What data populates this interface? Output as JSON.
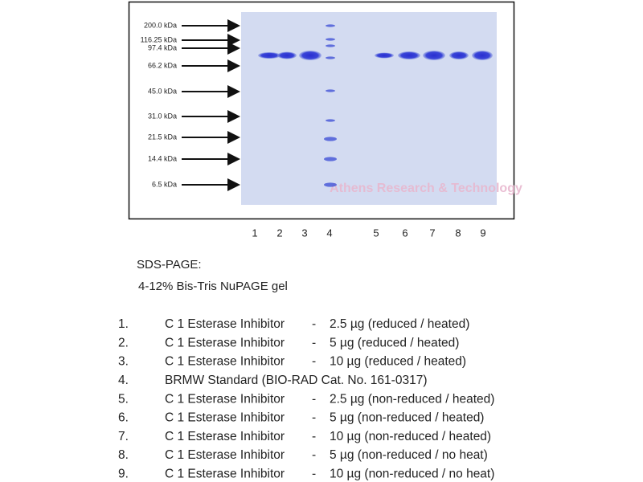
{
  "gel": {
    "markers": [
      "200.0 kDa",
      "116.25 kDa",
      "97.4 kDa",
      "66.2 kDa",
      "45.0 kDa",
      "31.0 kDa",
      "21.5 kDa",
      "14.4 kDa",
      "6.5 kDa"
    ],
    "lane_numbers": [
      "1",
      "2",
      "3",
      "4",
      "5",
      "6",
      "7",
      "8",
      "9"
    ],
    "watermark": "Athens Research & Technology"
  },
  "caption": {
    "title": "SDS-PAGE:",
    "subtitle": "4-12% Bis-Tris NuPAGE gel"
  },
  "legend": [
    {
      "number": "1.",
      "name": "C 1 Esterase Inhibitor",
      "separator": "-",
      "detail": "2.5 µg (reduced / heated)"
    },
    {
      "number": "2.",
      "name": "C 1 Esterase Inhibitor",
      "separator": "-",
      "detail": "5  µg (reduced / heated)"
    },
    {
      "number": "3.",
      "name": "C 1 Esterase Inhibitor",
      "separator": "-",
      "detail": "10  µg (reduced / heated)"
    },
    {
      "number": "4.",
      "name": "BRMW Standard (BIO-RAD Cat.  No.  161-0317)"
    },
    {
      "number": "5.",
      "name": "C 1 Esterase Inhibitor",
      "separator": "-",
      "detail": "2.5  µg (non-reduced / heated)"
    },
    {
      "number": "6.",
      "name": "C 1 Esterase Inhibitor",
      "separator": "-",
      "detail": "5  µg (non-reduced / heated)"
    },
    {
      "number": "7.",
      "name": "C 1 Esterase Inhibitor",
      "separator": "-",
      "detail": "10  µg (non-reduced / heated)"
    },
    {
      "number": "8.",
      "name": "C 1 Esterase Inhibitor",
      "separator": "-",
      "detail": "5  µg (non-reduced / no heat)"
    },
    {
      "number": "9.",
      "name": "C 1 Esterase Inhibitor",
      "separator": "-",
      "detail": "10  µg (non-reduced / no heat)"
    }
  ]
}
